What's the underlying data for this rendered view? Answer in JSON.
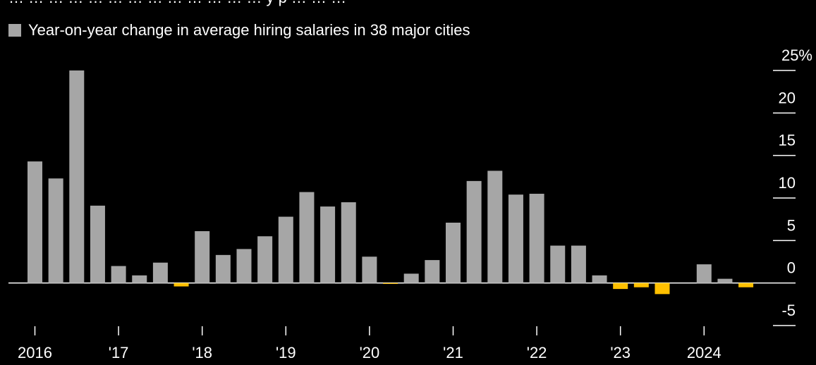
{
  "chart_data": {
    "type": "bar",
    "title": "",
    "subtitle_partial": "… … … … … … … … … … … … … y p … … …",
    "xlabel": "",
    "ylabel": "",
    "ylim": [
      -5,
      25
    ],
    "y_ticks": [
      25,
      20,
      15,
      10,
      5,
      0,
      -5
    ],
    "y_tick_labels": [
      "25%",
      "20",
      "15",
      "10",
      "5",
      "0",
      "-5"
    ],
    "x_tick_labels": [
      "2016",
      "'17",
      "'18",
      "'19",
      "'20",
      "'21",
      "'22",
      "'23",
      "2024"
    ],
    "legend": "top-left",
    "grid": false,
    "colors": {
      "positive": "#a6a6a6",
      "negative": "#ffc000",
      "background": "#000000",
      "text": "#ffffff"
    },
    "series": [
      {
        "name": "Year-on-year change in average hiring salaries in 38 major cities",
        "x": [
          "2016 Q1",
          "2016 Q2",
          "2016 Q3",
          "2016 Q4",
          "2017 Q1",
          "2017 Q2",
          "2017 Q3",
          "2017 Q4",
          "2018 Q1",
          "2018 Q2",
          "2018 Q3",
          "2018 Q4",
          "2019 Q1",
          "2019 Q2",
          "2019 Q3",
          "2019 Q4",
          "2020 Q1",
          "2020 Q2",
          "2020 Q3",
          "2020 Q4",
          "2021 Q1",
          "2021 Q2",
          "2021 Q3",
          "2021 Q4",
          "2022 Q1",
          "2022 Q2",
          "2022 Q3",
          "2022 Q4",
          "2023 Q1",
          "2023 Q2",
          "2023 Q3",
          "2023 Q4",
          "2024 Q1",
          "2024 Q2",
          "2024 Q3"
        ],
        "values": [
          14.3,
          12.3,
          25.0,
          9.1,
          2.0,
          0.9,
          2.4,
          -0.4,
          6.1,
          3.3,
          4.0,
          5.5,
          7.8,
          10.7,
          9.0,
          9.5,
          3.1,
          -0.1,
          1.1,
          2.7,
          7.1,
          12.0,
          13.2,
          10.4,
          10.5,
          4.4,
          4.4,
          0.9,
          -0.7,
          -0.5,
          -1.3,
          0.0,
          2.2,
          0.5,
          -0.5
        ]
      }
    ]
  }
}
